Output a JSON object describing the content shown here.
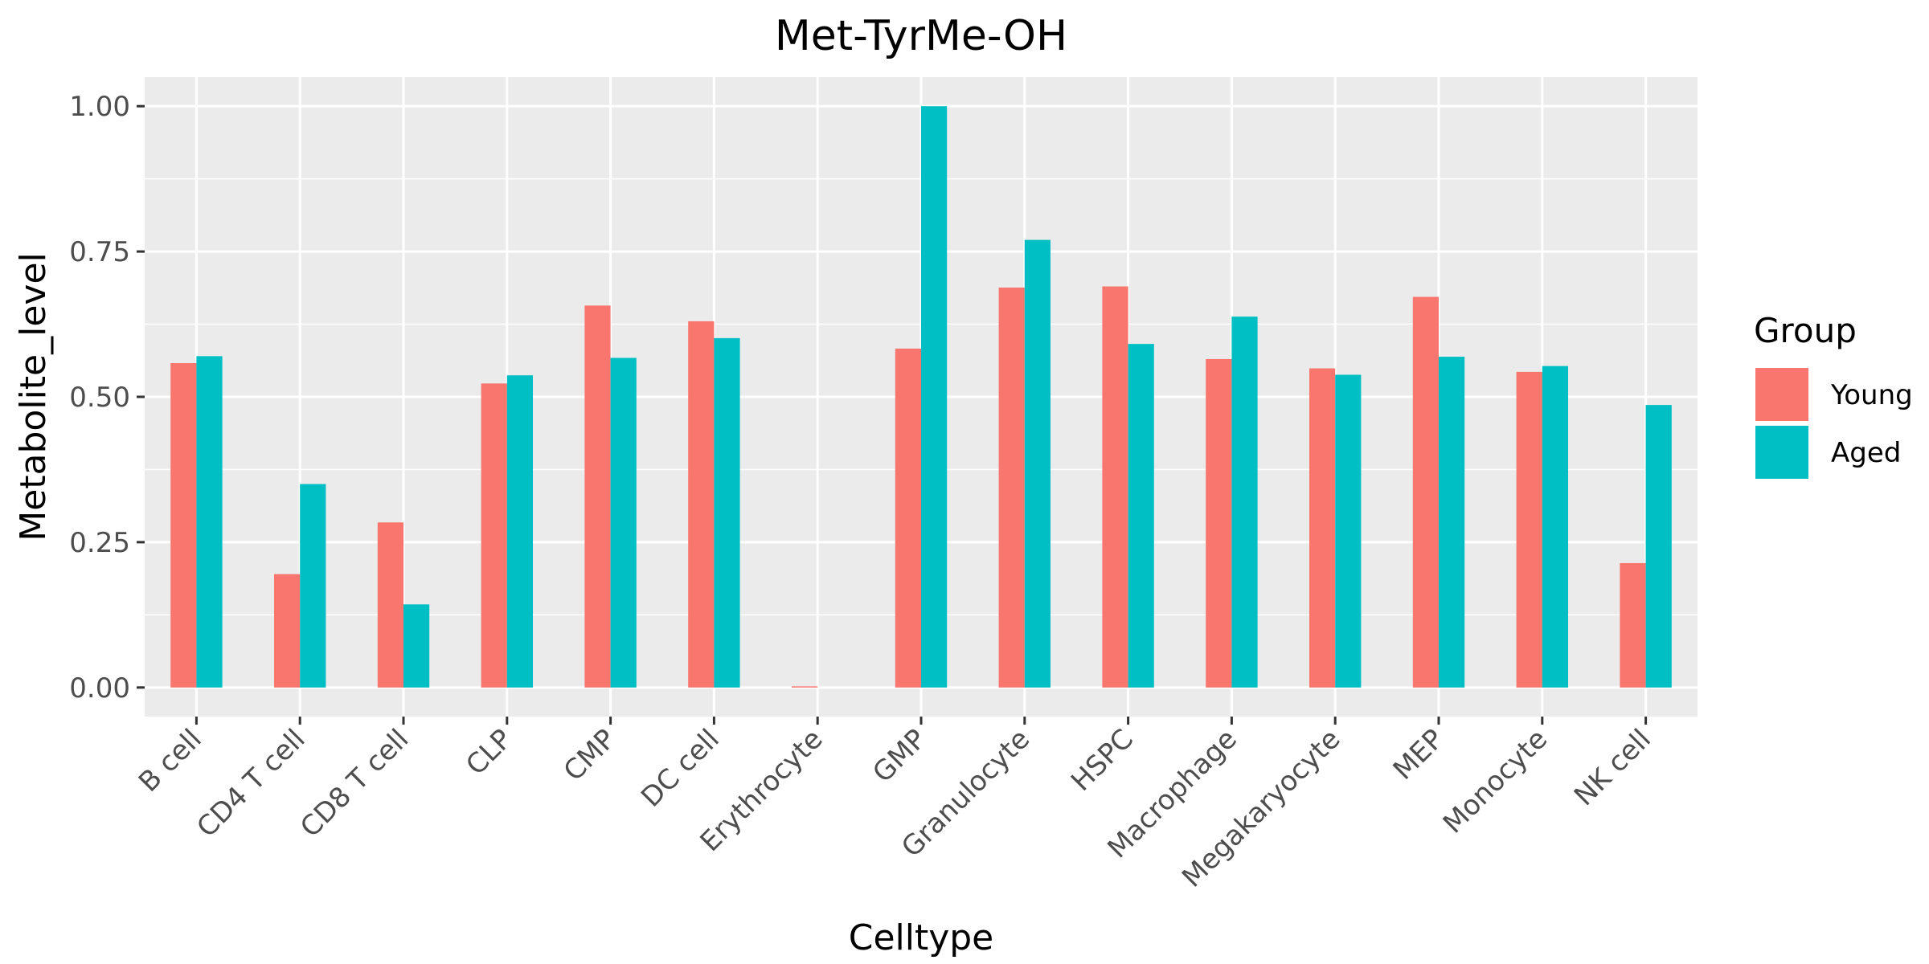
{
  "chart_data": {
    "type": "bar",
    "title": "Met-TyrMe-OH",
    "xlabel": "Celltype",
    "ylabel": "Metabolite_level",
    "ylim": [
      -0.05,
      1.05
    ],
    "yticks": [
      0,
      0.25,
      0.5,
      0.75,
      1.0
    ],
    "ytick_labels": [
      "0.00",
      "0.25",
      "0.50",
      "0.75",
      "1.00"
    ],
    "grid": true,
    "legend_title": "Group",
    "legend_position": "right",
    "categories": [
      "B cell",
      "CD4 T cell",
      "CD8 T cell",
      "CLP",
      "CMP",
      "DC cell",
      "Erythrocyte",
      "GMP",
      "Granulocyte",
      "HSPC",
      "Macrophage",
      "Megakaryocyte",
      "MEP",
      "Monocyte",
      "NK cell"
    ],
    "series": [
      {
        "name": "Young",
        "color": "#F8766D",
        "values": [
          0.558,
          0.195,
          0.284,
          0.523,
          0.657,
          0.63,
          0.002,
          0.583,
          0.688,
          0.69,
          0.565,
          0.549,
          0.672,
          0.543,
          0.214
        ]
      },
      {
        "name": "Aged",
        "color": "#00BFC4",
        "values": [
          0.57,
          0.35,
          0.143,
          0.537,
          0.567,
          0.601,
          0.0,
          1.0,
          0.77,
          0.591,
          0.638,
          0.538,
          0.569,
          0.553,
          0.486
        ]
      }
    ]
  }
}
